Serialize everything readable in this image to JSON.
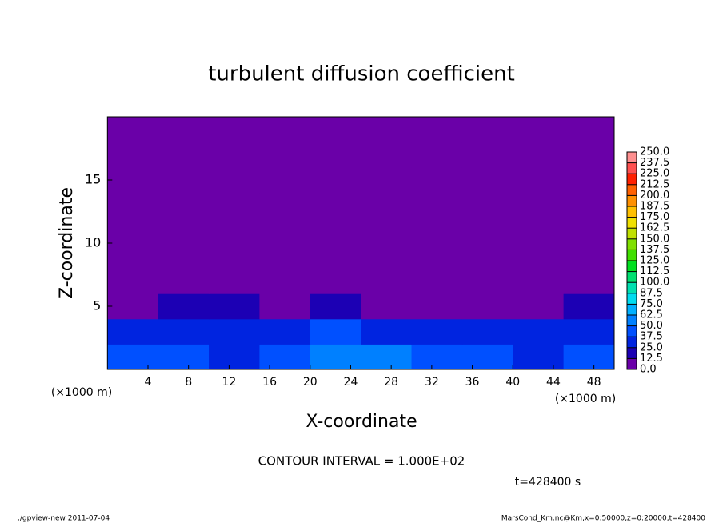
{
  "chart_data": {
    "type": "heatmap",
    "title": "turbulent diffusion coefficient",
    "xlabel": "X-coordinate",
    "ylabel": "Z-coordinate",
    "x_unit": "(×1000 m)",
    "y_unit": "(×1000 m)",
    "contour_note": "CONTOUR INTERVAL = 1.000E+02",
    "time_label": "t=428400 s",
    "footer_left": "./gpview-new  2011-07-04",
    "footer_right": "MarsCond_Km.nc@Km,x=0:50000,z=0:20000,t=428400",
    "xlim": [
      0,
      50
    ],
    "ylim": [
      0,
      20
    ],
    "xticks": [
      4,
      8,
      12,
      16,
      20,
      24,
      28,
      32,
      36,
      40,
      44,
      48
    ],
    "yticks": [
      5,
      10,
      15
    ],
    "xbins": [
      0,
      5,
      10,
      15,
      20,
      25,
      30,
      35,
      40,
      45,
      50
    ],
    "zbins": [
      0,
      2,
      4,
      6,
      8,
      10,
      12,
      14,
      16,
      18,
      20
    ],
    "values": [
      [
        45,
        40,
        35,
        40,
        55,
        50,
        40,
        45,
        35,
        40
      ],
      [
        35,
        30,
        25,
        30,
        40,
        30,
        30,
        30,
        25,
        35
      ],
      [
        12,
        15,
        15,
        5,
        20,
        10,
        8,
        12,
        10,
        15
      ],
      [
        3,
        3,
        3,
        3,
        3,
        3,
        3,
        3,
        3,
        3
      ],
      [
        5,
        5,
        5,
        8,
        8,
        5,
        8,
        5,
        5,
        8
      ],
      [
        3,
        5,
        5,
        5,
        8,
        5,
        5,
        3,
        5,
        5
      ],
      [
        0,
        0,
        0,
        0,
        0,
        0,
        0,
        0,
        0,
        0
      ],
      [
        0,
        0,
        0,
        0,
        0,
        0,
        0,
        0,
        0,
        0
      ],
      [
        0,
        0,
        0,
        0,
        0,
        0,
        0,
        0,
        0,
        0
      ],
      [
        0,
        0,
        0,
        0,
        0,
        0,
        0,
        0,
        0,
        0
      ]
    ],
    "levels": [
      {
        "value": 0,
        "label": "0.0"
      },
      12.5,
      {
        "value": 25,
        "label": "25.0"
      },
      37.5,
      {
        "value": 50,
        "label": "50.0"
      },
      62.5,
      {
        "value": 75,
        "label": "75.0"
      },
      87.5,
      {
        "value": 100,
        "label": "100.0"
      },
      112.5,
      {
        "value": 125,
        "label": "125.0"
      },
      137.5,
      {
        "value": 150,
        "label": "150.0"
      },
      162.5,
      {
        "value": 175,
        "label": "175.0"
      },
      187.5,
      {
        "value": 200,
        "label": "200.0"
      },
      212.5,
      {
        "value": 225,
        "label": "225.0"
      },
      237.5,
      {
        "value": 250,
        "label": "250.0"
      }
    ],
    "colors": [
      "#6a00a8",
      "#1c00b4",
      "#0024e0",
      "#0050ff",
      "#0080ff",
      "#00b0ff",
      "#00dcf0",
      "#00e0b0",
      "#00e070",
      "#00e020",
      "#40e000",
      "#80e000",
      "#c0e000",
      "#f0e000",
      "#ffc000",
      "#ff9000",
      "#ff6000",
      "#ff2000",
      "#ff5050",
      "#ff9090"
    ]
  }
}
